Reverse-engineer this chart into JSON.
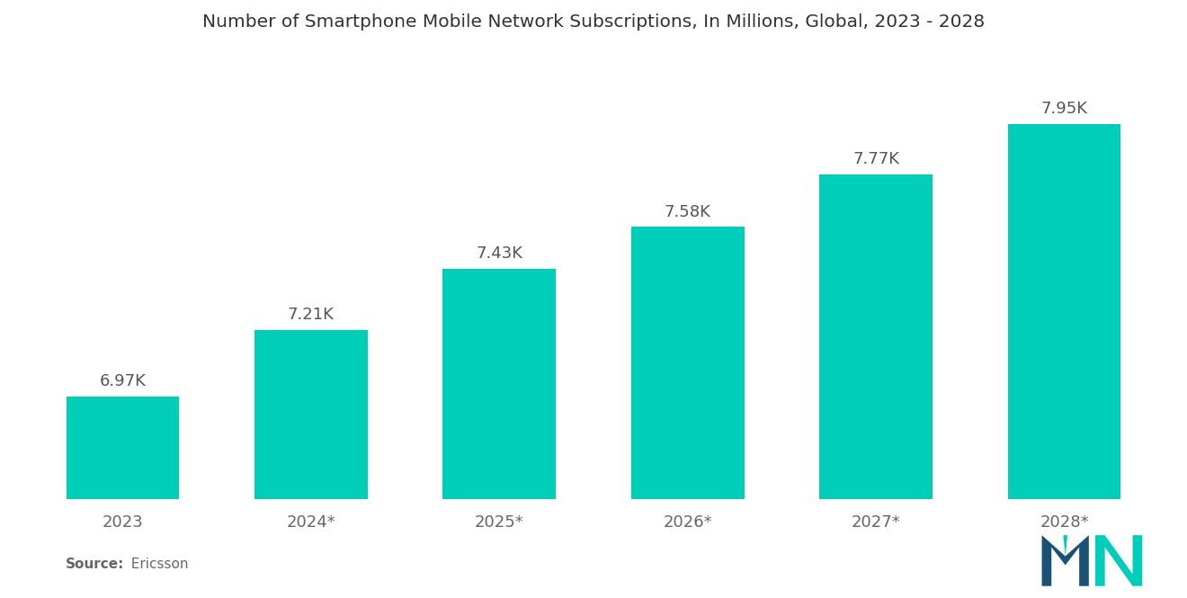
{
  "title": "Number of Smartphone Mobile Network Subscriptions, In Millions, Global, 2023 - 2028",
  "categories": [
    "2023",
    "2024*",
    "2025*",
    "2026*",
    "2027*",
    "2028*"
  ],
  "values": [
    6970,
    7210,
    7430,
    7580,
    7770,
    7950
  ],
  "labels": [
    "6.97K",
    "7.21K",
    "7.43K",
    "7.58K",
    "7.77K",
    "7.95K"
  ],
  "bar_color": "#00CEB8",
  "background_color": "#ffffff",
  "title_fontsize": 14.5,
  "label_fontsize": 13,
  "tick_fontsize": 13,
  "source_bold": "Source:",
  "source_normal": "  Ericsson",
  "ylim_min": 6600,
  "ylim_max": 8200,
  "bar_width": 0.6,
  "label_color": "#555555",
  "tick_color": "#666666"
}
